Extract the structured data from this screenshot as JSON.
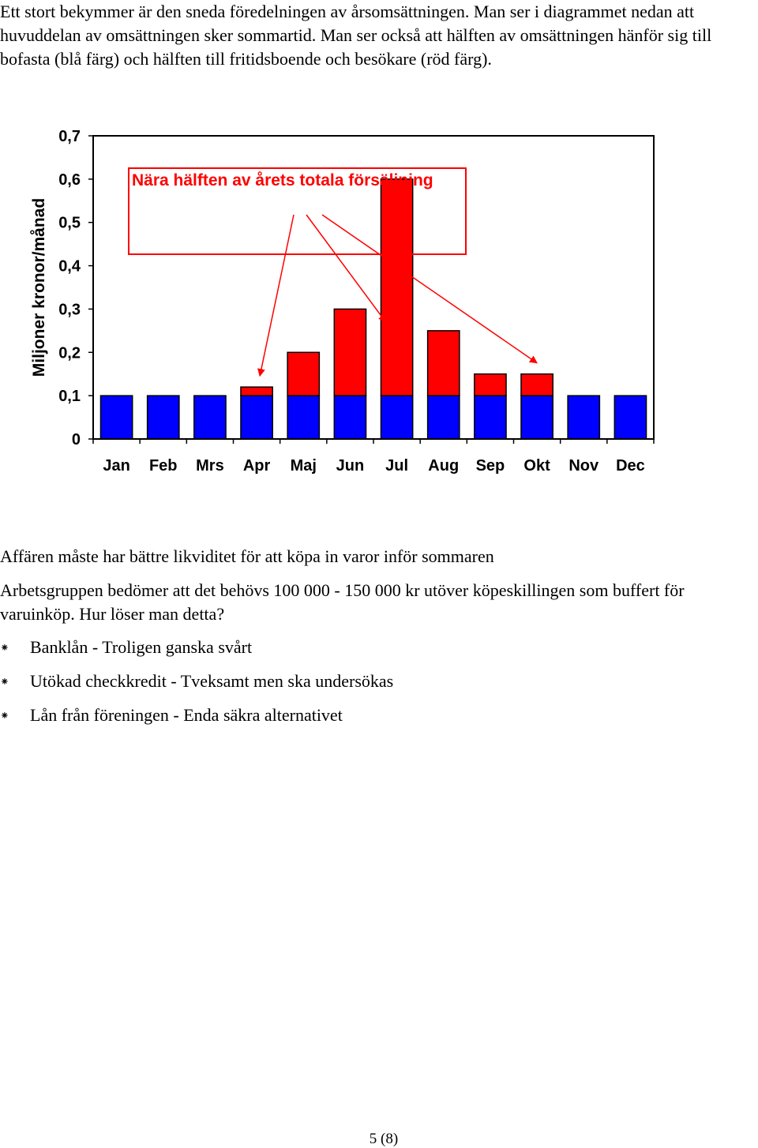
{
  "intro": "Ett stort bekymmer är den sneda föredelningen av årsomsättningen. Man ser i diagrammet nedan att huvuddelan av omsättningen sker sommartid. Man ser också att hälften av omsättningen hänför sig till bofasta (blå färg) och hälften till fritidsboende och besökare (röd färg).",
  "chart_data": {
    "type": "bar",
    "stacked": true,
    "categories": [
      "Jan",
      "Feb",
      "Mrs",
      "Apr",
      "Maj",
      "Jun",
      "Jul",
      "Aug",
      "Sep",
      "Okt",
      "Nov",
      "Dec"
    ],
    "series": [
      {
        "color": "#0000ff",
        "values": [
          0.1,
          0.1,
          0.1,
          0.1,
          0.1,
          0.1,
          0.1,
          0.1,
          0.1,
          0.1,
          0.1,
          0.1
        ]
      },
      {
        "color": "#ff0000",
        "values": [
          0,
          0,
          0,
          0.02,
          0.1,
          0.2,
          0.5,
          0.15,
          0.05,
          0.05,
          0,
          0
        ]
      }
    ],
    "ylabel": "Miljoner kronor/månad",
    "ylim": [
      0,
      0.7
    ],
    "yticks": [
      "0",
      "0,1",
      "0,2",
      "0,3",
      "0,4",
      "0,5",
      "0,6",
      "0,7"
    ],
    "grid": false,
    "annotation": {
      "text": "Nära hälften av årets totala försäljning",
      "color": "#ff0000",
      "arrow_targets": [
        "Apr",
        "Jul",
        "Okt"
      ]
    }
  },
  "paragraphs": [
    "Affären måste har bättre likviditet för att köpa in varor inför sommaren",
    "Arbetsgruppen bedömer att det behövs 100 000 - 150 000 kr utöver köpeskillingen som buffert för varuinköp. Hur löser man detta?"
  ],
  "bullets": [
    "Banklån - Troligen ganska svårt",
    "Utökad checkkredit - Tveksamt men ska undersökas",
    "Lån från föreningen - Enda säkra alternativet"
  ],
  "bullet_symbol": "⁕",
  "page_number": "5 (8)"
}
